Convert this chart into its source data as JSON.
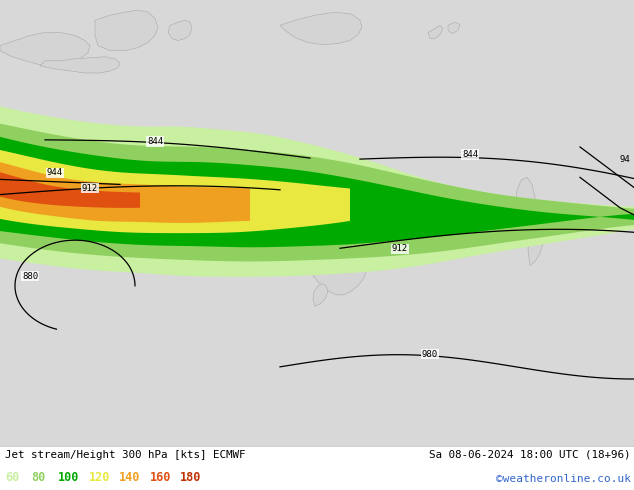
{
  "title_left": "Jet stream/Height 300 hPa [kts] ECMWF",
  "title_right": "Sa 08-06-2024 18:00 UTC (18+96)",
  "credit": "©weatheronline.co.uk",
  "legend_values": [
    60,
    80,
    100,
    120,
    140,
    160,
    180
  ],
  "legend_colors": [
    "#c8f0a0",
    "#90d060",
    "#00aa00",
    "#e8e840",
    "#f0a020",
    "#e05010",
    "#c03000"
  ],
  "bg_color": "#e0e0e0",
  "ocean_color": "#d8d8d8",
  "land_color": "#d4d4d4",
  "figsize": [
    6.34,
    4.9
  ],
  "dpi": 100,
  "bottom_bar_color": "#ffffff",
  "title_font_color": "#000000",
  "credit_color": "#3366cc",
  "jet60_color": "#c8f0a0",
  "jet80_color": "#90d060",
  "jet100_color": "#00aa00",
  "jet120_color": "#e8e840",
  "jet140_color": "#f0a020",
  "jet160_color": "#e05010",
  "jet180_color": "#c03000"
}
